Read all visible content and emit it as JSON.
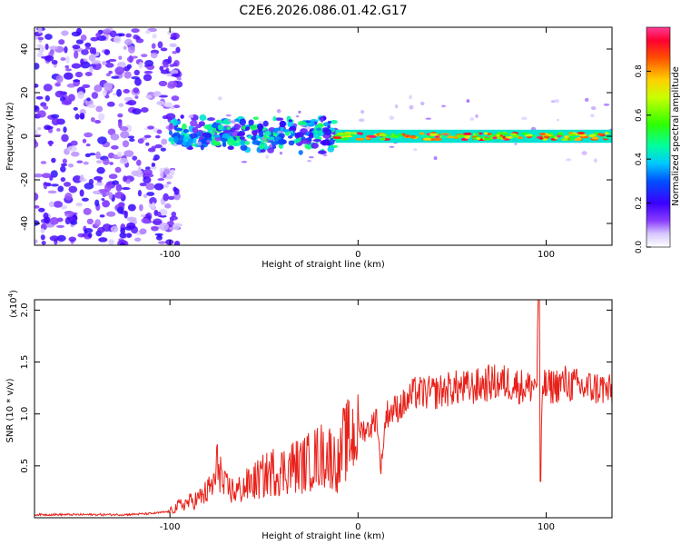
{
  "title": "C2E6.2026.086.01.42.G17",
  "chart_data": [
    {
      "type": "heatmap",
      "xlabel": "Height of straight line (km)",
      "ylabel": "Frequency (Hz)",
      "xlim": [
        -172,
        135
      ],
      "ylim": [
        -50,
        50
      ],
      "x_ticks": [
        -100,
        0,
        100
      ],
      "y_ticks": [
        -40,
        -20,
        0,
        20,
        40
      ],
      "colorbar": {
        "label": "Normalized spectral amplitude",
        "range": [
          0,
          1
        ],
        "ticks": [
          "0.0",
          "0.2",
          "0.4",
          "0.6",
          "0.8"
        ],
        "tick_values": [
          0.0,
          0.2,
          0.4,
          0.6,
          0.8
        ]
      },
      "description_regions": [
        {
          "x_range": [
            -172,
            -100
          ],
          "freq_range": [
            -50,
            50
          ],
          "amplitude": 0.15
        },
        {
          "x_range": [
            -100,
            -12
          ],
          "freq_range": [
            -8,
            10
          ],
          "amplitude": 0.4
        },
        {
          "x_range": [
            -12,
            135
          ],
          "freq_range": [
            -3,
            3
          ],
          "amplitude": 0.9
        }
      ]
    },
    {
      "type": "line",
      "xlabel": "Height of straight line (km)",
      "ylabel": "SNR (10 * v/v)",
      "scale_label": "(x10",
      "scale_exp": "4",
      "scale_close": ")",
      "xlim": [
        -172,
        135
      ],
      "ylim": [
        0,
        2.1
      ],
      "x_ticks": [
        -100,
        0,
        100
      ],
      "y_ticks": [
        "0.5",
        "1.0",
        "1.5",
        "2.0"
      ],
      "y_tick_values": [
        0.5,
        1.0,
        1.5,
        2.0
      ],
      "series": [
        {
          "name": "SNR",
          "color": "#e8211a",
          "x": [
            -172,
            -150,
            -125,
            -110,
            -100,
            -95,
            -90,
            -85,
            -80,
            -76,
            -74,
            -72,
            -65,
            -60,
            -55,
            -50,
            -45,
            -40,
            -35,
            -30,
            -25,
            -20,
            -15,
            -10,
            -8,
            -5,
            0,
            5,
            8,
            10,
            12,
            15,
            20,
            25,
            30,
            40,
            50,
            60,
            70,
            80,
            90,
            95,
            96,
            97,
            98,
            100,
            110,
            120,
            130,
            135
          ],
          "y": [
            0.03,
            0.03,
            0.03,
            0.04,
            0.06,
            0.12,
            0.15,
            0.18,
            0.25,
            0.35,
            0.6,
            0.3,
            0.25,
            0.3,
            0.35,
            0.4,
            0.45,
            0.45,
            0.5,
            0.5,
            0.55,
            0.6,
            0.6,
            0.5,
            0.7,
            0.75,
            0.85,
            0.85,
            0.9,
            1.0,
            0.45,
            1.0,
            1.05,
            1.1,
            1.2,
            1.2,
            1.25,
            1.25,
            1.3,
            1.3,
            1.25,
            1.3,
            2.1,
            0.35,
            1.3,
            1.25,
            1.3,
            1.25,
            1.25,
            1.2
          ]
        }
      ]
    }
  ]
}
